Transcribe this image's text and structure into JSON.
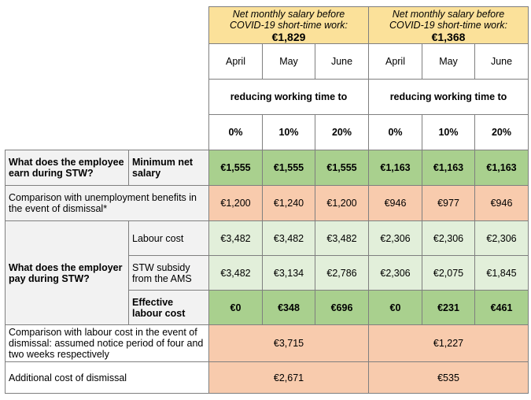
{
  "header": {
    "groups": [
      {
        "line1": "Net monthly salary before",
        "line2": "COVID-19 short-time work:",
        "amount": "€1,829"
      },
      {
        "line1": "Net monthly salary before",
        "line2": "COVID-19 short-time work:",
        "amount": "€1,368"
      }
    ],
    "months": [
      "April",
      "May",
      "June",
      "April",
      "May",
      "June"
    ],
    "reducing_label": "reducing working time to",
    "percents": [
      "0%",
      "10%",
      "20%",
      "0%",
      "10%",
      "20%"
    ]
  },
  "rows": {
    "employee_question": "What does the employee earn during STW?",
    "min_net_salary_label": "Minimum net salary",
    "min_net_salary": [
      "€1,555",
      "€1,555",
      "€1,555",
      "€1,163",
      "€1,163",
      "€1,163"
    ],
    "unemployment_label": "Comparison with unemployment benefits in the event of dismissal*",
    "unemployment": [
      "€1,200",
      "€1,240",
      "€1,200",
      "€946",
      "€977",
      "€946"
    ],
    "employer_question": "What does the employer pay during STW?",
    "labour_cost_label": "Labour cost",
    "labour_cost": [
      "€3,482",
      "€3,482",
      "€3,482",
      "€2,306",
      "€2,306",
      "€2,306"
    ],
    "subsidy_label": "STW subsidy from the AMS",
    "subsidy": [
      "€3,482",
      "€3,134",
      "€2,786",
      "€2,306",
      "€2,075",
      "€1,845"
    ],
    "effective_label": "Effective labour cost",
    "effective": [
      "€0",
      "€348",
      "€696",
      "€0",
      "€231",
      "€461"
    ],
    "dismissal_cost_label": "Comparison with labour cost in the event of dismissal: assumed notice period of four and two weeks respectively",
    "dismissal_cost": [
      "€3,715",
      "€1,227"
    ],
    "additional_label": "Additional cost of dismissal",
    "additional": [
      "€2,671",
      "€535"
    ]
  }
}
